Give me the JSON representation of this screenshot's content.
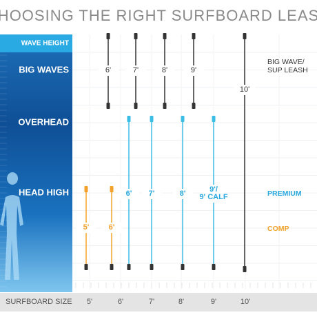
{
  "title": "CHOOSING THE RIGHT SURFBOARD LEASH",
  "wave_heights": [
    "WAVE HEIGHT",
    "BIG WAVES",
    "OVERHEAD",
    "HEAD HIGH"
  ],
  "x_axis": {
    "label": "SURFBOARD SIZE",
    "sizes": [
      "5'",
      "6'",
      "7'",
      "8'",
      "9'",
      "10'"
    ]
  },
  "leash_groups": [
    {
      "name_lines": [
        "BIG WAVE/",
        "SUP LEASH"
      ],
      "leashes": [
        {
          "lines": [
            "6'"
          ]
        },
        {
          "lines": [
            "7'"
          ]
        },
        {
          "lines": [
            "8'"
          ]
        },
        {
          "lines": [
            "9'"
          ]
        },
        {
          "lines": [
            "10'"
          ]
        }
      ]
    },
    {
      "name_lines": [
        "PREMIUM"
      ],
      "leashes": [
        {
          "lines": [
            "6'"
          ]
        },
        {
          "lines": [
            "7'"
          ]
        },
        {
          "lines": [
            "8'"
          ]
        },
        {
          "lines": [
            "9'/",
            "9' CALF"
          ]
        }
      ]
    },
    {
      "name_lines": [
        "COMP"
      ],
      "leashes": [
        {
          "lines": [
            "5'"
          ]
        },
        {
          "lines": [
            "6'"
          ]
        }
      ]
    }
  ]
}
